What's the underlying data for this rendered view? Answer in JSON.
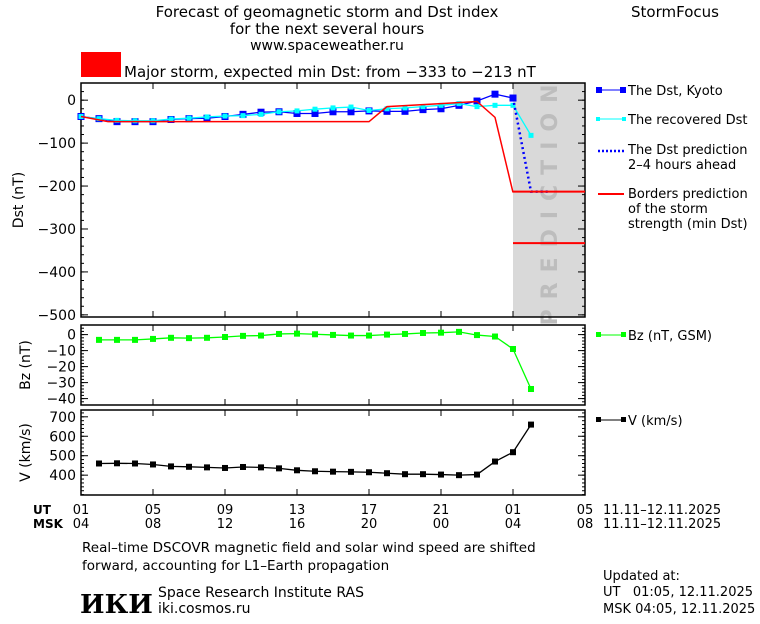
{
  "header": {
    "title_line1": "Forecast of geomagnetic storm and Dst index",
    "title_line2": "for the next several hours",
    "site": "www.spaceweather.ru",
    "brand": "StormFocus",
    "storm_level_color": "#ff0000",
    "storm_message": "Major storm, expected min Dst: from −333 to −213 nT"
  },
  "legend": {
    "dst_kyoto": "The Dst, Kyoto",
    "recovered": "The recovered Dst",
    "prediction_1": "The Dst prediction",
    "prediction_2": "2–4 hours ahead",
    "borders_1": "Borders prediction",
    "borders_2": "of the storm",
    "borders_3": "strength (min Dst)",
    "bz": "Bz (nT, GSM)",
    "v": "V (km/s)"
  },
  "colors": {
    "dst_kyoto": "#0000ff",
    "recovered": "#00ffff",
    "prediction": "#0000ff",
    "borders": "#ff0000",
    "bz": "#00ff00",
    "v": "#000000",
    "prediction_zone": "#d9d9d9"
  },
  "chart_data": [
    {
      "type": "line",
      "ylabel": "Dst (nT)",
      "ylim": [
        -505,
        40
      ],
      "yticks": [
        0,
        -100,
        -200,
        -300,
        -400,
        -500
      ],
      "xlim": [
        "2025-11-11T01",
        "2025-11-12T05"
      ],
      "prediction_zone": {
        "label": "PREDICTION",
        "from": "2025-11-12T01",
        "to": "2025-11-12T05"
      },
      "series": [
        {
          "key": "dst_kyoto",
          "name": "The Dst, Kyoto",
          "marker": "square",
          "start": "2025-11-11T01",
          "values": [
            -38,
            -43,
            -50,
            -50,
            -50,
            -45,
            -43,
            -42,
            -38,
            -33,
            -28,
            -27,
            -31,
            -31,
            -27,
            -27,
            -25,
            -26,
            -26,
            -22,
            -20,
            -12,
            -2,
            14,
            5
          ]
        },
        {
          "key": "recovered",
          "name": "The recovered Dst",
          "marker": "small-square",
          "start": "2025-11-11T01",
          "values": [
            -38,
            -43,
            -47,
            -48,
            -48,
            -44,
            -42,
            -39,
            -37,
            -36,
            -33,
            -27,
            -25,
            -21,
            -18,
            -16,
            -24,
            -20,
            -18,
            -15,
            -12,
            -8,
            -15,
            -12,
            -12,
            -82
          ]
        },
        {
          "key": "prediction",
          "name": "The Dst prediction 2–4 hours ahead",
          "style": "dotted",
          "points": [
            [
              "2025-11-12T01",
              5
            ],
            [
              "2025-11-12T02",
              -213
            ],
            [
              "2025-11-12T03",
              -213
            ]
          ]
        },
        {
          "key": "borders",
          "name": "Borders prediction of the storm strength (min Dst)",
          "points": [
            [
              "2025-11-11T01",
              -38
            ],
            [
              "2025-11-11T02:30",
              -50
            ],
            [
              "2025-11-11T17",
              -50
            ],
            [
              "2025-11-11T18",
              -15
            ],
            [
              "2025-11-11T21",
              -8
            ],
            [
              "2025-11-11T23",
              -3
            ],
            [
              "2025-11-12T00",
              -40
            ],
            [
              "2025-11-12T01",
              -215
            ]
          ]
        },
        {
          "key": "borders_upper",
          "name": "",
          "points": [
            [
              "2025-11-12T01",
              -213
            ],
            [
              "2025-11-12T05",
              -213
            ]
          ]
        },
        {
          "key": "borders_lower",
          "name": "",
          "points": [
            [
              "2025-11-12T01",
              -333
            ],
            [
              "2025-11-12T05",
              -333
            ]
          ]
        }
      ]
    },
    {
      "type": "line",
      "ylabel": "Bz (nT)",
      "ylim": [
        -44,
        6
      ],
      "yticks": [
        0,
        -10,
        -20,
        -30,
        -40
      ],
      "series": [
        {
          "key": "bz",
          "name": "Bz (nT, GSM)",
          "marker": "square",
          "start": "2025-11-11T02",
          "values": [
            -3.3,
            -3.3,
            -3.3,
            -2.7,
            -2,
            -2.2,
            -2,
            -1.5,
            -0.8,
            -0.6,
            0.4,
            0.6,
            0.2,
            -0.2,
            -0.6,
            -0.6,
            0,
            0.4,
            1,
            1.2,
            1.7,
            -0.3,
            -1.2,
            -9,
            -34
          ]
        }
      ]
    },
    {
      "type": "line",
      "ylabel": "V (km/s)",
      "ylim": [
        298,
        735
      ],
      "yticks": [
        400,
        500,
        600,
        700
      ],
      "series": [
        {
          "key": "v",
          "name": "V (km/s)",
          "marker": "square",
          "start": "2025-11-11T02",
          "values": [
            460,
            461,
            460,
            455,
            445,
            443,
            440,
            437,
            442,
            440,
            435,
            425,
            420,
            418,
            417,
            415,
            410,
            405,
            405,
            403,
            400,
            403,
            470,
            518,
            660
          ]
        }
      ]
    }
  ],
  "time_axis": {
    "ut_label": "UT",
    "msk_label": "MSK",
    "ut_ticks": [
      "01",
      "05",
      "09",
      "13",
      "17",
      "21",
      "01",
      "05"
    ],
    "msk_ticks": [
      "04",
      "08",
      "12",
      "16",
      "20",
      "00",
      "04",
      "08"
    ],
    "ut_range": "11.11–12.11.2025",
    "msk_range": "11.11–12.11.2025"
  },
  "footer": {
    "note_line1": "Real–time DSCOVR magnetic field and solar wind speed are shifted",
    "note_line2": "forward, accounting for L1–Earth propagation",
    "logo_text": "ИКИ",
    "institute": "Space Research Institute RAS",
    "institute_site": "iki.cosmos.ru",
    "updated_label": "Updated at:",
    "updated_ut": "UT   01:05, 12.11.2025",
    "updated_msk": "MSK 04:05, 12.11.2025"
  }
}
